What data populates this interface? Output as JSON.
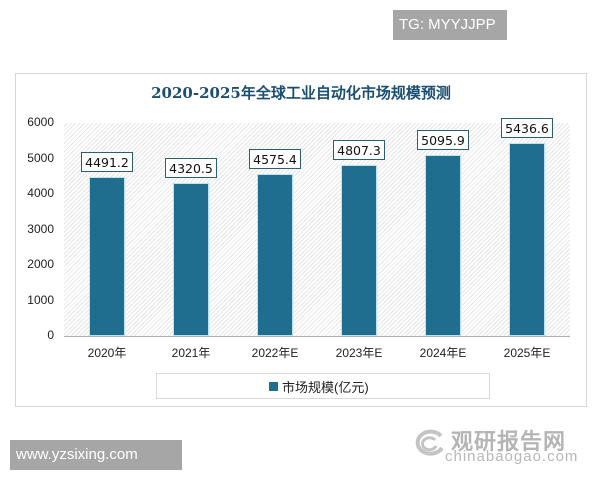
{
  "watermarks": {
    "tg": "TG: MYYJJPP",
    "url": "www.yzsixing.com",
    "brand_cn": "观研报告网",
    "brand_en": "chinabaogao.com"
  },
  "colors": {
    "bar": "#1f6e8f",
    "title": "#1b4f72"
  },
  "chart_data": {
    "type": "bar",
    "title": "2020-2025年全球工业自动化市场规模预测",
    "xlabel": "",
    "ylabel": "",
    "categories": [
      "2020年",
      "2021年",
      "2022年E",
      "2023年E",
      "2024年E",
      "2025年E"
    ],
    "series": [
      {
        "name": "市场规模(亿元)",
        "values": [
          4491.2,
          4320.5,
          4575.4,
          4807.3,
          5095.9,
          5436.6
        ]
      }
    ],
    "value_labels": [
      "4491.2",
      "4320.5",
      "4575.4",
      "4807.3",
      "5095.9",
      "5436.6"
    ],
    "ylim": [
      0,
      6000
    ],
    "yticks": [
      "6000",
      "5000",
      "4000",
      "3000",
      "2000",
      "1000",
      "0"
    ],
    "grid": false,
    "legend_position": "bottom"
  }
}
